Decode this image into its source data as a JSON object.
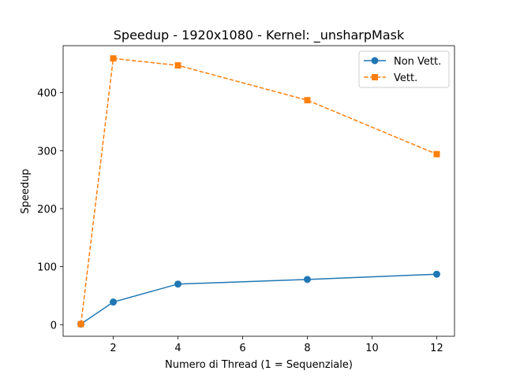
{
  "chart_data": {
    "type": "line",
    "title": "Speedup - 1920x1080 - Kernel: _unsharpMask",
    "xlabel": "Numero di Thread (1 = Sequenziale)",
    "ylabel": "Speedup",
    "xlim": [
      0.45,
      12.55
    ],
    "ylim": [
      -20,
      481
    ],
    "xticks": [
      2,
      4,
      6,
      8,
      10,
      12
    ],
    "yticks": [
      0,
      100,
      200,
      300,
      400
    ],
    "grid": false,
    "legend_position": "top-right",
    "series": [
      {
        "name": "Non Vett.",
        "color": "#1f77b4",
        "marker": "circle",
        "linestyle": "solid",
        "x": [
          1,
          2,
          4,
          8,
          12
        ],
        "y": [
          1,
          39,
          70,
          78,
          87
        ]
      },
      {
        "name": "Vett.",
        "color": "#ff7f0e",
        "marker": "square",
        "linestyle": "dashed",
        "x": [
          1,
          2,
          4,
          8,
          12
        ],
        "y": [
          1,
          459,
          447,
          387,
          294
        ]
      }
    ]
  }
}
